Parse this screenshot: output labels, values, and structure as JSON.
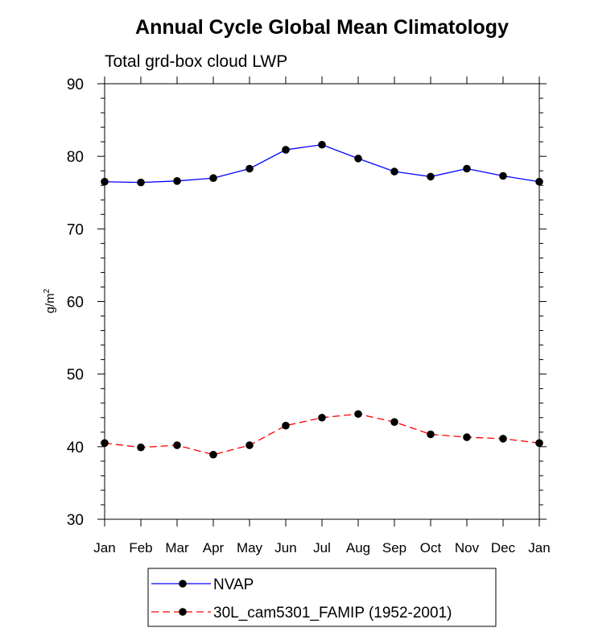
{
  "chart_data": {
    "type": "line",
    "title": "Annual Cycle Global Mean Climatology",
    "subtitle": "Total grd-box cloud LWP",
    "ylabel": "g/m",
    "ylabel_sup": "2",
    "xlabel": "",
    "ylim": [
      30,
      90
    ],
    "yticks": [
      30,
      40,
      50,
      60,
      70,
      80,
      90
    ],
    "categories": [
      "Jan",
      "Feb",
      "Mar",
      "Apr",
      "May",
      "Jun",
      "Jul",
      "Aug",
      "Sep",
      "Oct",
      "Nov",
      "Dec",
      "Jan"
    ],
    "series": [
      {
        "name": "NVAP",
        "color": "#0000ff",
        "dash": "solid",
        "values": [
          76.5,
          76.4,
          76.6,
          77.0,
          78.3,
          80.9,
          81.6,
          79.7,
          77.9,
          77.2,
          78.3,
          77.3,
          76.5
        ]
      },
      {
        "name": "30L_cam5301_FAMIP (1952-2001)",
        "color": "#ff0000",
        "dash": "dashed",
        "values": [
          40.5,
          39.9,
          40.2,
          38.9,
          40.2,
          42.9,
          44.0,
          44.5,
          43.4,
          41.7,
          41.3,
          41.1,
          40.5
        ]
      }
    ],
    "grid": false,
    "legend_position": "bottom-center"
  }
}
